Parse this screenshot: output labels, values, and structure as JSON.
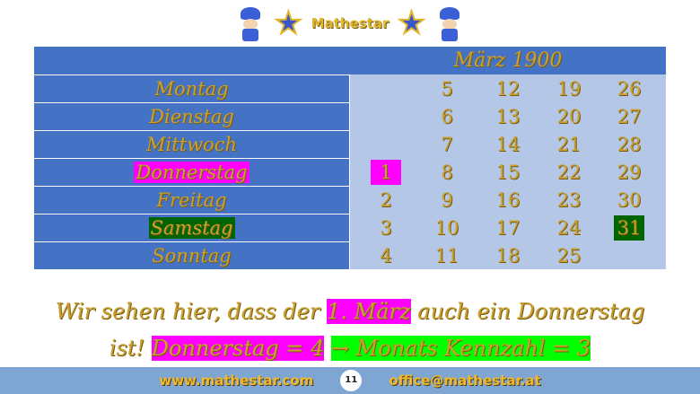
{
  "logo": {
    "brand": "Mathestar"
  },
  "calendar": {
    "title": "März 1900",
    "days": [
      "Montag",
      "Dienstag",
      "Mittwoch",
      "Donnerstag",
      "Freitag",
      "Samstag",
      "Sonntag"
    ],
    "highlight_day_magenta": "Donnerstag",
    "highlight_day_green": "Samstag",
    "weeks": [
      [
        "",
        "",
        "",
        "1",
        "2",
        "3",
        "4"
      ],
      [
        "5",
        "6",
        "7",
        "8",
        "9",
        "10",
        "11"
      ],
      [
        "12",
        "13",
        "14",
        "15",
        "16",
        "17",
        "18"
      ],
      [
        "19",
        "20",
        "21",
        "22",
        "23",
        "24",
        "25"
      ],
      [
        "26",
        "27",
        "28",
        "29",
        "30",
        "31",
        ""
      ]
    ]
  },
  "text": {
    "line1_a": "Wir sehen hier, dass der ",
    "line1_hl": "1. März",
    "line1_b": " auch ein Donnerstag",
    "line2_a": "ist! ",
    "line2_hl1": "Donnerstag = 4",
    "line2_hl2": "→ Monats Kennzahl = 3"
  },
  "footer": {
    "website": "www.mathestar.com",
    "page": "11",
    "email": "office@mathestar.at"
  },
  "colors": {
    "cell_blue": "#4472c4",
    "panel_blue": "#b4c7e7",
    "gold": "#c8a12e",
    "magenta": "#ff00ff",
    "green": "#00ff00",
    "dark_green": "#006400"
  }
}
